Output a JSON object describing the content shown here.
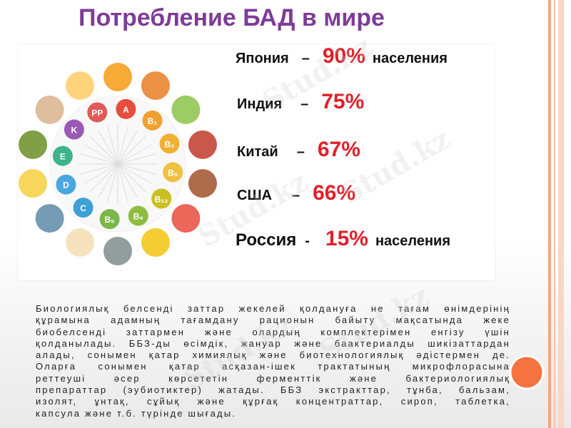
{
  "title": "Потребление БАД в мире",
  "watermark": "Stud.kz",
  "vitamins": [
    "PP",
    "A",
    "B₁",
    "B₂",
    "B₆",
    "B₁₂",
    "B₉",
    "B₅",
    "C",
    "D",
    "E",
    "K"
  ],
  "countries": [
    {
      "name": "Япония",
      "dash": "–",
      "percent": "90%",
      "suffix": "населения"
    },
    {
      "name": "Индия",
      "dash": "–",
      "percent": "75%"
    },
    {
      "name": "Китай",
      "dash": "–",
      "percent": "67%"
    },
    {
      "name": "США",
      "dash": "–",
      "percent": "66%"
    },
    {
      "name": "Россия",
      "dash": "-",
      "percent": "15%",
      "suffix": "населения"
    }
  ],
  "paragraph": [
    "Биологиялық белсенді заттар жекелей қолдануға не тағам өнімдерінің",
    "құрамына адамның тағамдану рационын байыту мақсатында жеке",
    "биобелсенді заттармен және олардың комплектерімен енгізу үшін",
    "қолданылады. ББЗ-ды өсімдік, жануар және баактериалды шикізаттардан",
    "алады, сонымен қатар химиялық және биотехнологиялық әдістермен де.",
    "Оларға сонымен қатар асқазан-ішек трактатының микрофлорасына",
    "реттеуші әсер көрсететін ферменттік және бактериологиялық",
    "препараттар (эубиотиктер) жатады. ББЗ экстракттар, тұнба, бальзам,",
    "изолят, ұнтақ, сұйық және құрғақ концентраттар, сироп, таблетка,",
    "капсула және т.б. түрінде шығады."
  ]
}
